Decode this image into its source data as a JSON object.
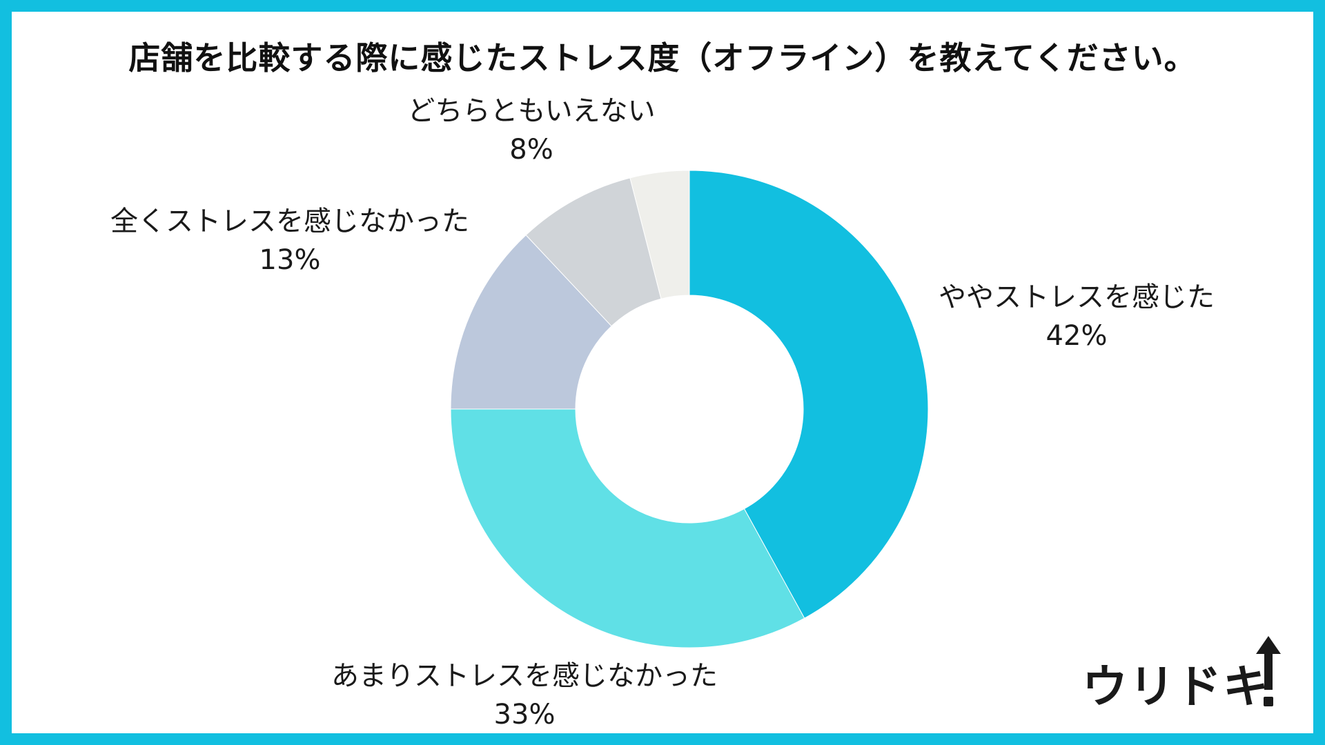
{
  "chart_data": {
    "type": "pie",
    "donut": true,
    "title": "店舗を比較する際に感じたストレス度（オフライン）を教えてください。",
    "slices": [
      {
        "label": "ややストレスを感じた",
        "value": 42,
        "value_label": "42%",
        "color": "#12bfe0"
      },
      {
        "label": "あまりストレスを感じなかった",
        "value": 33,
        "value_label": "33%",
        "color": "#60e0e6"
      },
      {
        "label": "全くストレスを感じなかった",
        "value": 13,
        "value_label": "13%",
        "color": "#bcc8dc"
      },
      {
        "label": "どちらともいえない",
        "value": 8,
        "value_label": "8%",
        "color": "#d0d4d8"
      },
      {
        "label": "",
        "value": 4,
        "value_label": "",
        "color": "#efefeb"
      }
    ],
    "start_angle_deg": 0,
    "direction": "clockwise",
    "legend": "none"
  },
  "colors": {
    "border": "#12bfe0",
    "background": "#ffffff",
    "text": "#1a1a1a"
  },
  "logo": {
    "text": "ウリドキ",
    "arrow_icon": "up-arrow-icon"
  }
}
